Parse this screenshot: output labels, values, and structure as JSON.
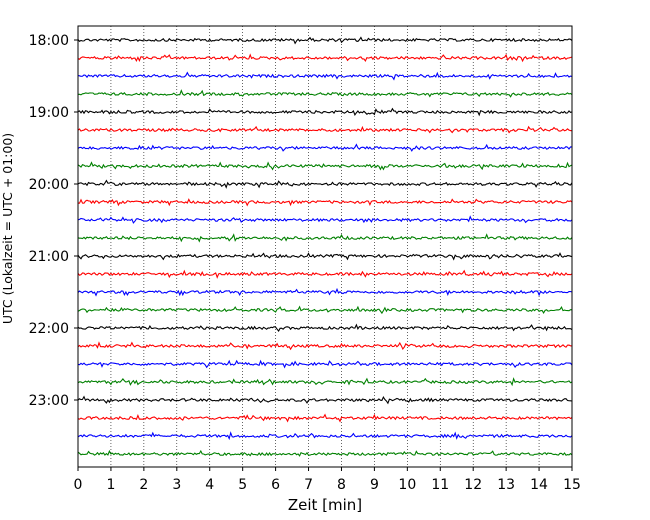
{
  "chart_data": {
    "type": "line",
    "xlabel": "Zeit  [min]",
    "ylabel": "UTC (Lokalzeit = UTC + 01:00)",
    "xlim": [
      0,
      15
    ],
    "x_ticks": [
      "0",
      "1",
      "2",
      "3",
      "4",
      "5",
      "6",
      "7",
      "8",
      "9",
      "10",
      "11",
      "12",
      "13",
      "14",
      "15"
    ],
    "y_ticks": [
      "18:00",
      "19:00",
      "20:00",
      "21:00",
      "22:00",
      "23:00"
    ],
    "grid": "vertical-dotted",
    "trace_colors": [
      "#000000",
      "#ff0000",
      "#0000ff",
      "#008000"
    ],
    "traces": [
      {
        "start": "18:00",
        "color": "#000000"
      },
      {
        "start": "18:15",
        "color": "#ff0000"
      },
      {
        "start": "18:30",
        "color": "#0000ff"
      },
      {
        "start": "18:45",
        "color": "#008000"
      },
      {
        "start": "19:00",
        "color": "#000000"
      },
      {
        "start": "19:15",
        "color": "#ff0000"
      },
      {
        "start": "19:30",
        "color": "#0000ff"
      },
      {
        "start": "19:45",
        "color": "#008000"
      },
      {
        "start": "20:00",
        "color": "#000000"
      },
      {
        "start": "20:15",
        "color": "#ff0000"
      },
      {
        "start": "20:30",
        "color": "#0000ff"
      },
      {
        "start": "20:45",
        "color": "#008000"
      },
      {
        "start": "21:00",
        "color": "#000000"
      },
      {
        "start": "21:15",
        "color": "#ff0000"
      },
      {
        "start": "21:30",
        "color": "#0000ff"
      },
      {
        "start": "21:45",
        "color": "#008000"
      },
      {
        "start": "22:00",
        "color": "#000000"
      },
      {
        "start": "22:15",
        "color": "#ff0000"
      },
      {
        "start": "22:30",
        "color": "#0000ff"
      },
      {
        "start": "22:45",
        "color": "#008000"
      },
      {
        "start": "23:00",
        "color": "#000000"
      },
      {
        "start": "23:15",
        "color": "#ff0000"
      },
      {
        "start": "23:30",
        "color": "#0000ff"
      },
      {
        "start": "23:45",
        "color": "#008000"
      }
    ]
  }
}
